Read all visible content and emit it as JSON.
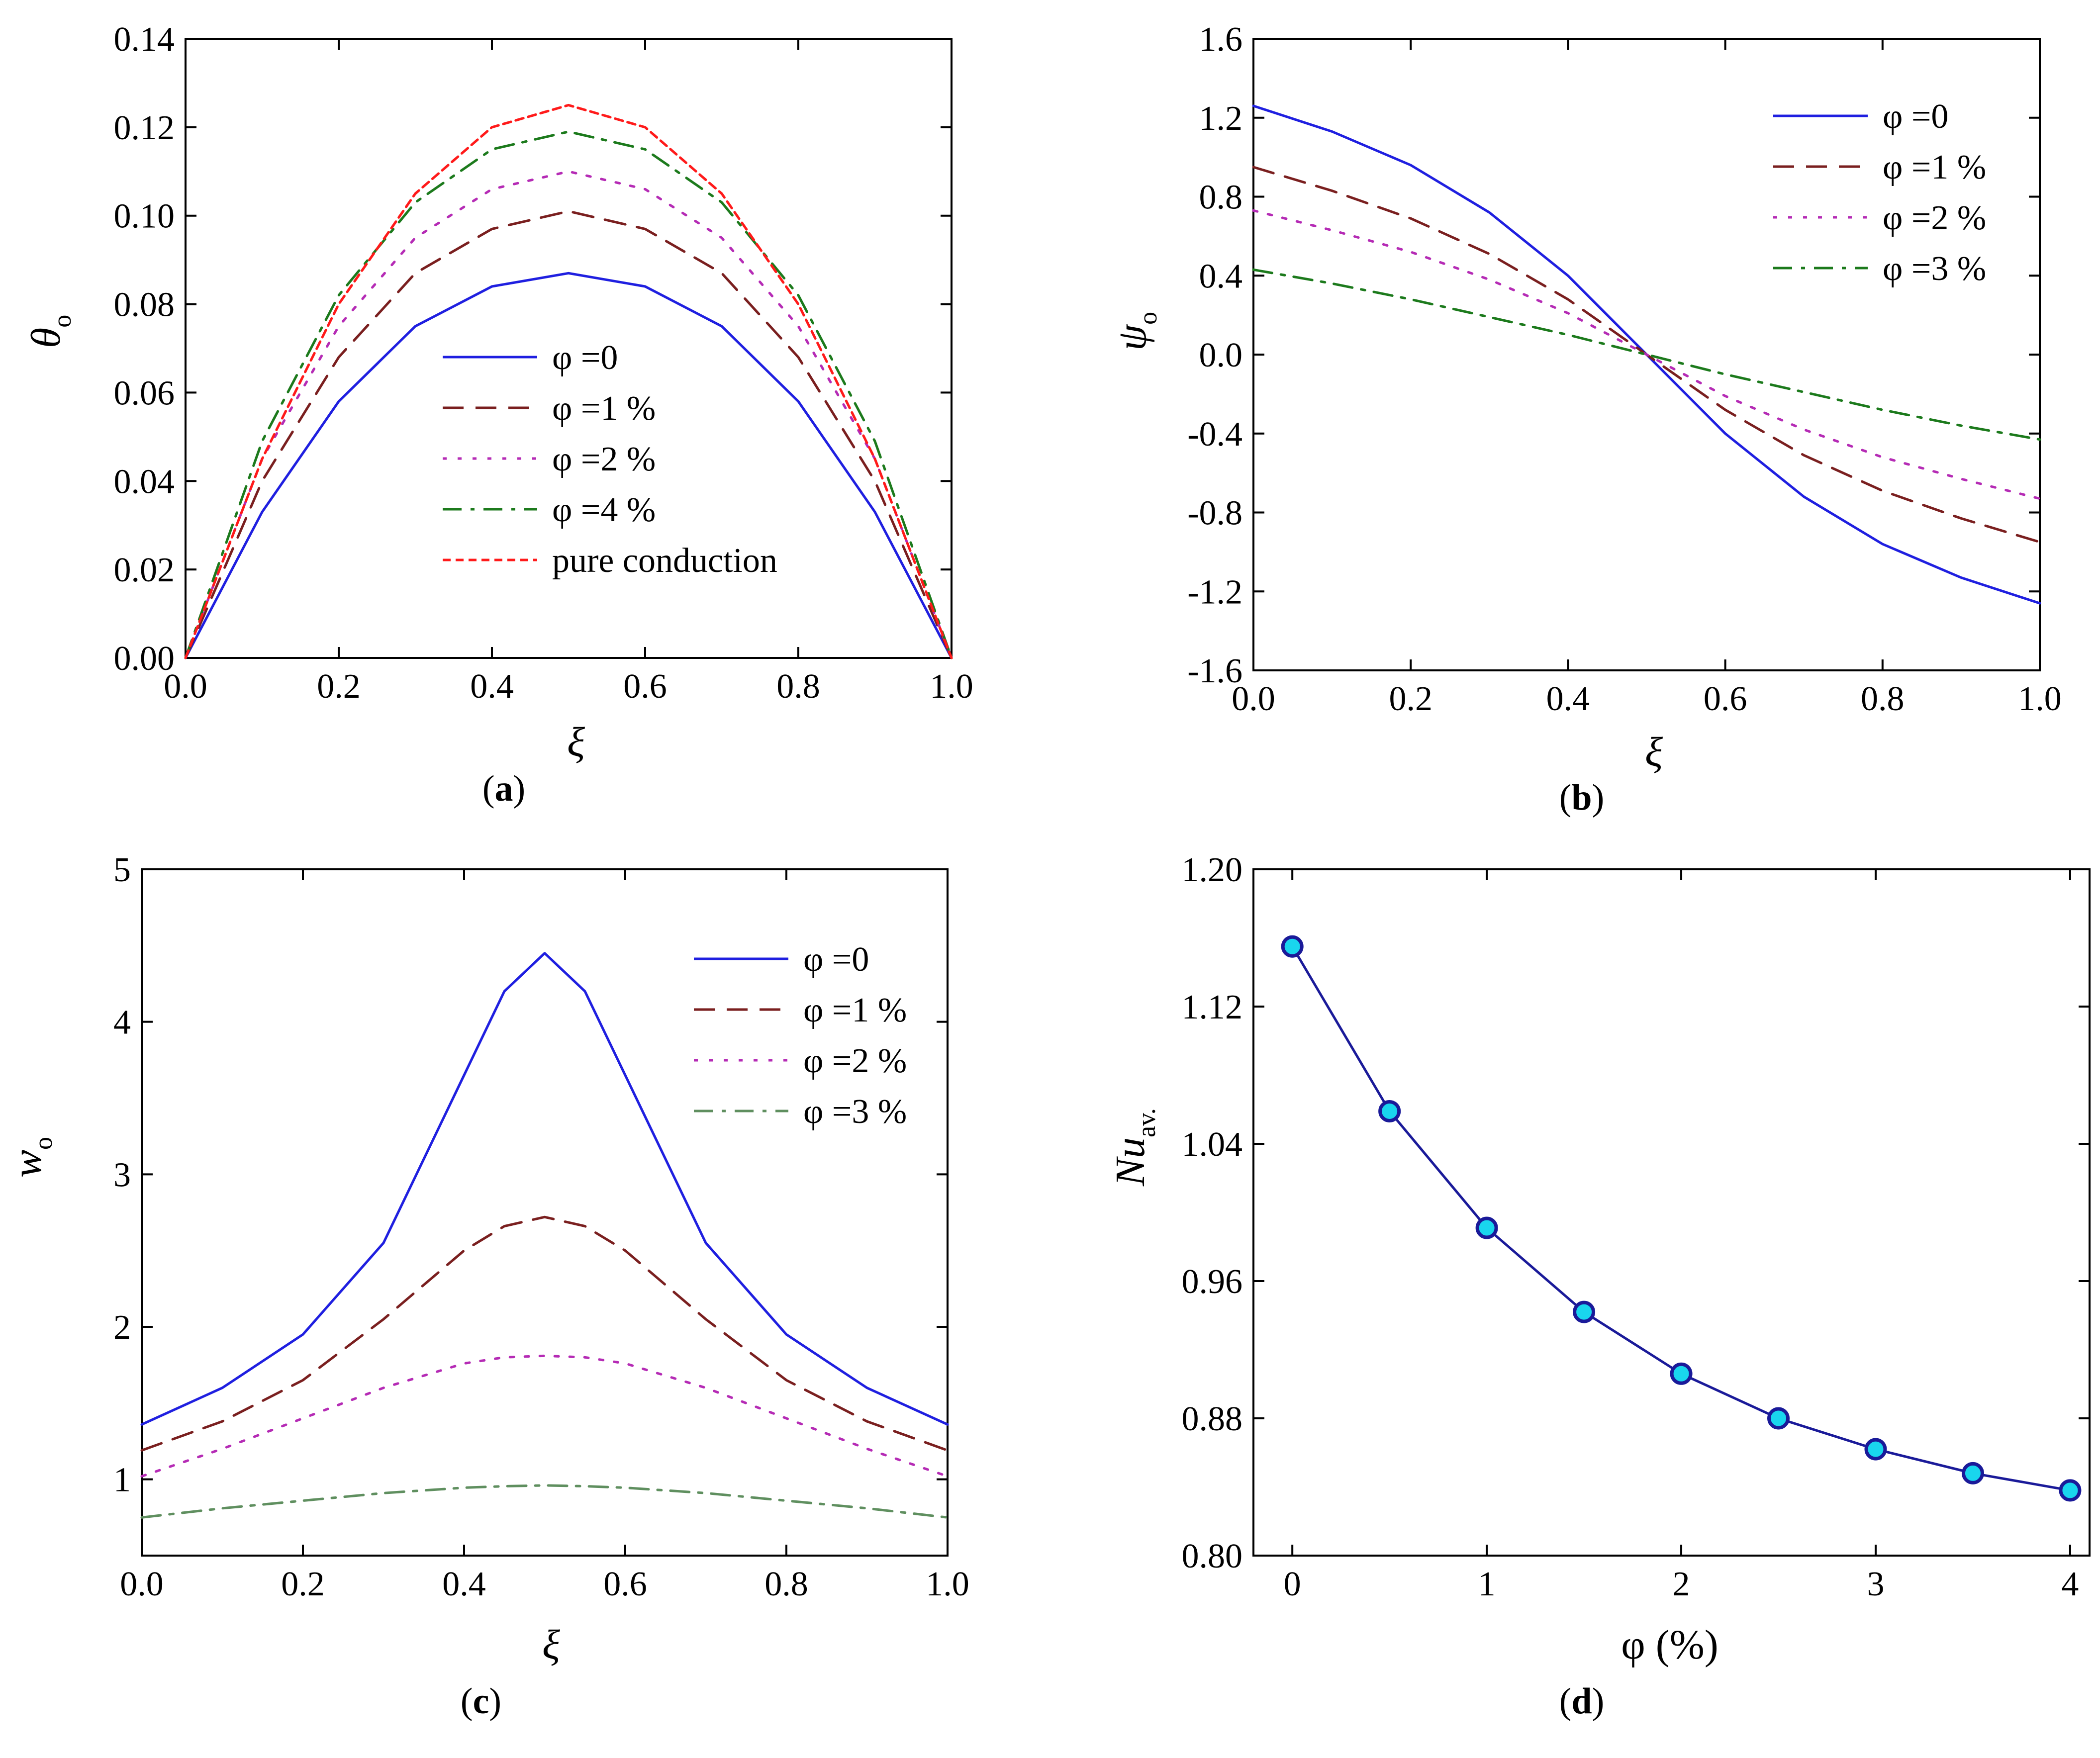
{
  "figure": {
    "background": "#ffffff"
  },
  "chart_data": [
    {
      "panel": "(a)",
      "panel_letter": "a",
      "type": "line",
      "title": "",
      "xlabel": "ξ",
      "ylabel": "θ",
      "ylabel_sub": "o",
      "xlim": [
        0,
        1
      ],
      "ylim": [
        0,
        0.14
      ],
      "xticks": [
        0.0,
        0.2,
        0.4,
        0.6,
        0.8,
        1.0
      ],
      "xtick_labels": [
        "0.0",
        "0.2",
        "0.4",
        "0.6",
        "0.8",
        "1.0"
      ],
      "yticks": [
        0,
        0.02,
        0.04,
        0.06,
        0.08,
        0.1,
        0.12,
        0.14
      ],
      "ytick_labels": [
        "0.00",
        "0.02",
        "0.04",
        "0.06",
        "0.08",
        "0.10",
        "0.12",
        "0.14"
      ],
      "grid": false,
      "legend_position": "center",
      "x": [
        0.0,
        0.1,
        0.2,
        0.3,
        0.4,
        0.5,
        0.6,
        0.7,
        0.8,
        0.9,
        1.0
      ],
      "series": [
        {
          "name": "φ =0",
          "color": "#1f1fe0",
          "dash": "solid",
          "values": [
            0.0,
            0.033,
            0.058,
            0.075,
            0.084,
            0.087,
            0.084,
            0.075,
            0.058,
            0.033,
            0.0
          ]
        },
        {
          "name": "φ =1 %",
          "color": "#7a1f1f",
          "dash": "dash",
          "values": [
            0.0,
            0.04,
            0.068,
            0.087,
            0.097,
            0.101,
            0.097,
            0.087,
            0.068,
            0.04,
            0.0
          ]
        },
        {
          "name": "φ =2 %",
          "color": "#b52bb5",
          "dash": "dot",
          "values": [
            0.0,
            0.045,
            0.075,
            0.095,
            0.106,
            0.11,
            0.106,
            0.095,
            0.075,
            0.045,
            0.0
          ]
        },
        {
          "name": "φ =4 %",
          "color": "#1c7a1c",
          "dash": "dashdot",
          "values": [
            0.0,
            0.049,
            0.082,
            0.103,
            0.115,
            0.119,
            0.115,
            0.103,
            0.082,
            0.049,
            0.0
          ]
        },
        {
          "name": "pure conduction",
          "color": "#ff1a1a",
          "dash": "shortdash",
          "values": [
            0.0,
            0.045,
            0.08,
            0.105,
            0.12,
            0.125,
            0.12,
            0.105,
            0.08,
            0.045,
            0.0
          ]
        }
      ]
    },
    {
      "panel": "(b)",
      "panel_letter": "b",
      "type": "line",
      "title": "",
      "xlabel": "ξ",
      "ylabel": "ψ",
      "ylabel_sub": "o",
      "xlim": [
        0,
        1
      ],
      "ylim": [
        -1.6,
        1.6
      ],
      "xticks": [
        0.0,
        0.2,
        0.4,
        0.6,
        0.8,
        1.0
      ],
      "xtick_labels": [
        "0.0",
        "0.2",
        "0.4",
        "0.6",
        "0.8",
        "1.0"
      ],
      "yticks": [
        -1.6,
        -1.2,
        -0.8,
        -0.4,
        0.0,
        0.4,
        0.8,
        1.2,
        1.6
      ],
      "ytick_labels": [
        "-1.6",
        "-1.2",
        "-0.8",
        "-0.4",
        "0.0",
        "0.4",
        "0.8",
        "1.2",
        "1.6"
      ],
      "grid": false,
      "legend_position": "top-right",
      "x": [
        0.0,
        0.1,
        0.2,
        0.3,
        0.4,
        0.5,
        0.6,
        0.7,
        0.8,
        0.9,
        1.0
      ],
      "series": [
        {
          "name": "φ =0",
          "color": "#1f1fe0",
          "dash": "solid",
          "values": [
            1.26,
            1.13,
            0.96,
            0.72,
            0.4,
            0.0,
            -0.4,
            -0.72,
            -0.96,
            -1.13,
            -1.26
          ]
        },
        {
          "name": "φ =1 %",
          "color": "#7a1f1f",
          "dash": "dash",
          "values": [
            0.95,
            0.83,
            0.69,
            0.51,
            0.28,
            0.0,
            -0.28,
            -0.51,
            -0.69,
            -0.83,
            -0.95
          ]
        },
        {
          "name": "φ =2 %",
          "color": "#b52bb5",
          "dash": "dot",
          "values": [
            0.73,
            0.63,
            0.52,
            0.38,
            0.21,
            0.0,
            -0.21,
            -0.38,
            -0.52,
            -0.63,
            -0.73
          ]
        },
        {
          "name": "φ =3 %",
          "color": "#1c7a1c",
          "dash": "dashdot",
          "values": [
            0.43,
            0.36,
            0.28,
            0.19,
            0.1,
            0.0,
            -0.1,
            -0.19,
            -0.28,
            -0.36,
            -0.43
          ]
        }
      ]
    },
    {
      "panel": "(c)",
      "panel_letter": "c",
      "type": "line",
      "title": "",
      "xlabel": "ξ",
      "ylabel": "w",
      "ylabel_sub": "o",
      "xlim": [
        0,
        1
      ],
      "ylim": [
        0.5,
        5
      ],
      "xticks": [
        0.0,
        0.2,
        0.4,
        0.6,
        0.8,
        1.0
      ],
      "xtick_labels": [
        "0.0",
        "0.2",
        "0.4",
        "0.6",
        "0.8",
        "1.0"
      ],
      "yticks": [
        1,
        2,
        3,
        4,
        5
      ],
      "ytick_labels": [
        "1",
        "2",
        "3",
        "4",
        "5"
      ],
      "grid": false,
      "legend_position": "top-right",
      "x": [
        0.0,
        0.1,
        0.2,
        0.3,
        0.4,
        0.45,
        0.5,
        0.55,
        0.6,
        0.7,
        0.8,
        0.9,
        1.0
      ],
      "series": [
        {
          "name": "φ =0",
          "color": "#1f1fe0",
          "dash": "solid",
          "values": [
            1.36,
            1.6,
            1.95,
            2.55,
            3.65,
            4.2,
            4.45,
            4.2,
            3.65,
            2.55,
            1.95,
            1.6,
            1.36
          ]
        },
        {
          "name": "φ =1 %",
          "color": "#7a1f1f",
          "dash": "dash",
          "values": [
            1.19,
            1.38,
            1.65,
            2.05,
            2.5,
            2.66,
            2.72,
            2.66,
            2.5,
            2.05,
            1.65,
            1.38,
            1.19
          ]
        },
        {
          "name": "φ =2 %",
          "color": "#b52bb5",
          "dash": "dot",
          "values": [
            1.02,
            1.2,
            1.4,
            1.6,
            1.76,
            1.8,
            1.81,
            1.8,
            1.76,
            1.6,
            1.4,
            1.2,
            1.02
          ]
        },
        {
          "name": "φ =3 %",
          "color": "#5f8f5f",
          "dash": "dashdot",
          "values": [
            0.75,
            0.81,
            0.86,
            0.91,
            0.945,
            0.955,
            0.96,
            0.955,
            0.945,
            0.91,
            0.86,
            0.81,
            0.75
          ]
        }
      ]
    },
    {
      "panel": "(d)",
      "panel_letter": "d",
      "type": "scatter",
      "title": "",
      "xlabel": "φ (%)",
      "ylabel": "Nu",
      "ylabel_sub": "av.",
      "xlim": [
        -0.2,
        4.1
      ],
      "ylim": [
        0.8,
        1.2
      ],
      "xticks": [
        0,
        1,
        2,
        3,
        4
      ],
      "xtick_labels": [
        "0",
        "1",
        "2",
        "3",
        "4"
      ],
      "yticks": [
        0.8,
        0.88,
        0.96,
        1.04,
        1.12,
        1.2
      ],
      "ytick_labels": [
        "0.80",
        "0.88",
        "0.96",
        "1.04",
        "1.12",
        "1.20"
      ],
      "grid": false,
      "legend_position": "none",
      "x": [
        0,
        0.5,
        1.0,
        1.5,
        2.0,
        2.5,
        3.0,
        3.5,
        4.0
      ],
      "series": [
        {
          "name": "Nu av.",
          "color": "#1a1a99",
          "marker_fill": "#19d6ee",
          "dash": "solid",
          "values": [
            1.155,
            1.059,
            0.991,
            0.942,
            0.906,
            0.88,
            0.862,
            0.848,
            0.838
          ]
        }
      ]
    }
  ]
}
